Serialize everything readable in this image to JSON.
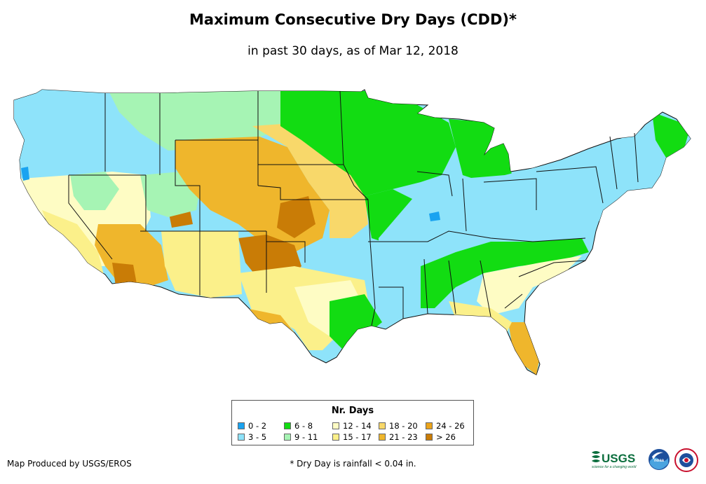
{
  "header": {
    "title": "Maximum Consecutive Dry Days (CDD)*",
    "subtitle": "in past 30 days, as of Mar 12, 2018"
  },
  "colors": {
    "c0_2": "#1aa3f0",
    "c3_5": "#8ee3fa",
    "c6_8": "#12dc12",
    "c9_11": "#a6f4b4",
    "c12_14": "#fefcc4",
    "c15_17": "#fbf08a",
    "c18_20": "#f8d86a",
    "c21_23": "#efb62c",
    "c24_26": "#eba41a",
    "c27": "#c97c06",
    "border": "#111111"
  },
  "legend": {
    "title": "Nr. Days",
    "items": [
      {
        "label": "0 - 2",
        "color": "#1aa3f0"
      },
      {
        "label": "3 - 5",
        "color": "#8ee3fa"
      },
      {
        "label": "6 - 8",
        "color": "#12dc12"
      },
      {
        "label": "9 - 11",
        "color": "#a6f4b4"
      },
      {
        "label": "12 - 14",
        "color": "#fefcc4"
      },
      {
        "label": "15 - 17",
        "color": "#fbf08a"
      },
      {
        "label": "18 - 20",
        "color": "#f8d86a"
      },
      {
        "label": "21 - 23",
        "color": "#efb62c"
      },
      {
        "label": "24 - 26",
        "color": "#eba41a"
      },
      {
        "label": "> 26",
        "color": "#c97c06"
      }
    ]
  },
  "footer": {
    "credit": "Map Produced by USGS/EROS",
    "footnote": "* Dry Day is rainfall < 0.04 in.",
    "usgs_logo_text": "USGS",
    "usgs_tagline": "science for a changing world",
    "noaa_logo_text": "noaa"
  }
}
